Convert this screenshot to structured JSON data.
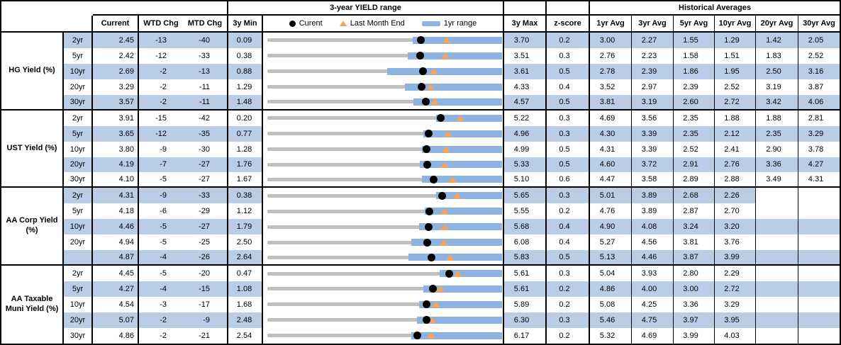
{
  "colors": {
    "stripe_blue": "#b9cde6",
    "range_bar_blue": "#8fb3e0",
    "track_gray": "#bfbfbf",
    "current_dot": "#000000",
    "last_month_triangle": "#f6a45c",
    "border": "#000000"
  },
  "header": {
    "historical_title": "Historical Averages",
    "current": "Current",
    "wtd": "WTD Chg",
    "mtd": "MTD Chg",
    "min3y": "3y Min",
    "max3y": "3y Max",
    "zscore": "z-score",
    "avgs": [
      "1yr Avg",
      "3yr Avg",
      "5yr Avg",
      "10yr Avg",
      "20yr Avg",
      "30yr Avg"
    ]
  },
  "chart_data": {
    "type": "table",
    "embedded_chart_type": "range-bullet per row: gray track = 3y Min to 3y Max, blue bar = 1yr range, black dot = current, orange triangle = last month end",
    "title": "3-year YIELD range",
    "legend": [
      {
        "marker": "dot",
        "label": "Curent"
      },
      {
        "marker": "triangle",
        "label": "Last Month End"
      },
      {
        "marker": "bar",
        "label": "1yr range"
      }
    ],
    "groups": [
      {
        "label": "HG Yield (%)",
        "rows": [
          {
            "tenor": "2yr",
            "current": "2.45",
            "wtd": "-13",
            "mtd": "-40",
            "min": "0.09",
            "max": "3.70",
            "z": "0.2",
            "avgs": [
              "3.00",
              "2.27",
              "1.55",
              "1.29",
              "1.42",
              "2.05"
            ],
            "yr1_low": 2.33,
            "yr1_high": 3.7,
            "last_month_end": 2.85
          },
          {
            "tenor": "5yr",
            "current": "2.42",
            "wtd": "-12",
            "mtd": "-33",
            "min": "0.38",
            "max": "3.51",
            "z": "0.3",
            "avgs": [
              "2.76",
              "2.23",
              "1.58",
              "1.51",
              "1.83",
              "2.52"
            ],
            "yr1_low": 2.25,
            "yr1_high": 3.51,
            "last_month_end": 2.75
          },
          {
            "tenor": "10yr",
            "current": "2.69",
            "wtd": "-2",
            "mtd": "-13",
            "min": "0.88",
            "max": "3.61",
            "z": "0.5",
            "avgs": [
              "2.78",
              "2.39",
              "1.86",
              "1.95",
              "2.50",
              "3.16"
            ],
            "yr1_low": 2.27,
            "yr1_high": 3.61,
            "last_month_end": 2.82
          },
          {
            "tenor": "20yr",
            "current": "3.29",
            "wtd": "-2",
            "mtd": "-11",
            "min": "1.29",
            "max": "4.33",
            "z": "0.4",
            "avgs": [
              "3.52",
              "2.97",
              "2.39",
              "2.52",
              "3.19",
              "3.87"
            ],
            "yr1_low": 3.07,
            "yr1_high": 4.33,
            "last_month_end": 3.4
          },
          {
            "tenor": "30yr",
            "current": "3.57",
            "wtd": "-2",
            "mtd": "-11",
            "min": "1.48",
            "max": "4.57",
            "z": "0.5",
            "avgs": [
              "3.81",
              "3.19",
              "2.60",
              "2.72",
              "3.42",
              "4.06"
            ],
            "yr1_low": 3.4,
            "yr1_high": 4.57,
            "last_month_end": 3.68
          }
        ]
      },
      {
        "label": "UST Yield (%)",
        "rows": [
          {
            "tenor": "2yr",
            "current": "3.91",
            "wtd": "-15",
            "mtd": "-42",
            "min": "0.20",
            "max": "5.22",
            "z": "0.3",
            "avgs": [
              "4.69",
              "3.56",
              "2.35",
              "1.88",
              "1.88",
              "2.81"
            ],
            "yr1_low": 3.81,
            "yr1_high": 5.22,
            "last_month_end": 4.33
          },
          {
            "tenor": "5yr",
            "current": "3.65",
            "wtd": "-12",
            "mtd": "-35",
            "min": "0.77",
            "max": "4.96",
            "z": "0.3",
            "avgs": [
              "4.30",
              "3.39",
              "2.35",
              "2.12",
              "2.35",
              "3.29"
            ],
            "yr1_low": 3.56,
            "yr1_high": 4.96,
            "last_month_end": 4.0
          },
          {
            "tenor": "10yr",
            "current": "3.80",
            "wtd": "-9",
            "mtd": "-30",
            "min": "1.28",
            "max": "4.99",
            "z": "0.5",
            "avgs": [
              "4.31",
              "3.39",
              "2.52",
              "2.41",
              "2.90",
              "3.78"
            ],
            "yr1_low": 3.72,
            "yr1_high": 4.99,
            "last_month_end": 4.1
          },
          {
            "tenor": "20yr",
            "current": "4.19",
            "wtd": "-7",
            "mtd": "-27",
            "min": "1.76",
            "max": "5.33",
            "z": "0.5",
            "avgs": [
              "4.60",
              "3.72",
              "2.91",
              "2.76",
              "3.36",
              "4.27"
            ],
            "yr1_low": 4.08,
            "yr1_high": 5.33,
            "last_month_end": 4.46
          },
          {
            "tenor": "30yr",
            "current": "4.10",
            "wtd": "-5",
            "mtd": "-27",
            "min": "1.67",
            "max": "5.10",
            "z": "0.6",
            "avgs": [
              "4.47",
              "3.58",
              "2.89",
              "2.88",
              "3.49",
              "4.31"
            ],
            "yr1_low": 3.93,
            "yr1_high": 5.1,
            "last_month_end": 4.37
          }
        ]
      },
      {
        "label": "AA Corp Yield (%)",
        "rows": [
          {
            "tenor": "2yr",
            "current": "4.31",
            "wtd": "-9",
            "mtd": "-33",
            "min": "0.38",
            "max": "5.65",
            "z": "0.3",
            "avgs": [
              "5.01",
              "3.89",
              "2.68",
              "2.26",
              "",
              ""
            ],
            "yr1_low": 4.17,
            "yr1_high": 5.65,
            "last_month_end": 4.64,
            "avg_empty_unshaded": true
          },
          {
            "tenor": "5yr",
            "current": "4.18",
            "wtd": "-6",
            "mtd": "-29",
            "min": "1.12",
            "max": "5.55",
            "z": "0.2",
            "avgs": [
              "4.76",
              "3.89",
              "2.87",
              "2.70",
              "",
              ""
            ],
            "yr1_low": 4.09,
            "yr1_high": 5.55,
            "last_month_end": 4.47
          },
          {
            "tenor": "10yr",
            "current": "4.46",
            "wtd": "-5",
            "mtd": "-27",
            "min": "1.79",
            "max": "5.68",
            "z": "0.4",
            "avgs": [
              "4.90",
              "4.08",
              "3.24",
              "3.20",
              "",
              ""
            ],
            "yr1_low": 4.3,
            "yr1_high": 5.68,
            "last_month_end": 4.73
          },
          {
            "tenor": "20yr",
            "current": "4.94",
            "wtd": "-5",
            "mtd": "-25",
            "min": "2.50",
            "max": "6.08",
            "z": "0.4",
            "avgs": [
              "5.27",
              "4.56",
              "3.81",
              "3.76",
              "",
              ""
            ],
            "yr1_low": 4.7,
            "yr1_high": 6.08,
            "last_month_end": 5.19
          },
          {
            "tenor": "",
            "current": "4.87",
            "wtd": "-4",
            "mtd": "-26",
            "min": "2.64",
            "max": "5.83",
            "z": "0.5",
            "avgs": [
              "5.13",
              "4.46",
              "3.87",
              "3.99",
              "",
              ""
            ],
            "yr1_low": 4.56,
            "yr1_high": 5.83,
            "last_month_end": 5.13
          }
        ]
      },
      {
        "label": "AA Taxable Muni Yield (%)",
        "rows": [
          {
            "tenor": "2yr",
            "current": "4.45",
            "wtd": "-5",
            "mtd": "-20",
            "min": "0.47",
            "max": "5.61",
            "z": "0.3",
            "avgs": [
              "5.04",
              "3.93",
              "2.80",
              "2.29",
              "",
              ""
            ],
            "yr1_low": 4.24,
            "yr1_high": 5.61,
            "last_month_end": 4.65
          },
          {
            "tenor": "5yr",
            "current": "4.27",
            "wtd": "-4",
            "mtd": "-15",
            "min": "1.08",
            "max": "5.61",
            "z": "0.2",
            "avgs": [
              "4.86",
              "4.00",
              "3.00",
              "2.72",
              "",
              ""
            ],
            "yr1_low": 4.09,
            "yr1_high": 5.61,
            "last_month_end": 4.42
          },
          {
            "tenor": "10yr",
            "current": "4.54",
            "wtd": "-3",
            "mtd": "-17",
            "min": "1.68",
            "max": "5.89",
            "z": "0.2",
            "avgs": [
              "5.08",
              "4.25",
              "3.36",
              "3.29",
              "",
              ""
            ],
            "yr1_low": 4.4,
            "yr1_high": 5.89,
            "last_month_end": 4.71
          },
          {
            "tenor": "20yr",
            "current": "5.07",
            "wtd": "-2",
            "mtd": "-9",
            "min": "2.48",
            "max": "6.30",
            "z": "0.3",
            "avgs": [
              "5.46",
              "4.75",
              "3.97",
              "3.95",
              "",
              ""
            ],
            "yr1_low": 4.91,
            "yr1_high": 6.3,
            "last_month_end": 5.16
          },
          {
            "tenor": "30yr",
            "current": "4.86",
            "wtd": "-2",
            "mtd": "-21",
            "min": "2.54",
            "max": "6.17",
            "z": "0.2",
            "avgs": [
              "5.32",
              "4.69",
              "3.99",
              "4.03",
              "",
              ""
            ],
            "yr1_low": 4.77,
            "yr1_high": 6.17,
            "last_month_end": 5.07
          }
        ]
      }
    ]
  }
}
